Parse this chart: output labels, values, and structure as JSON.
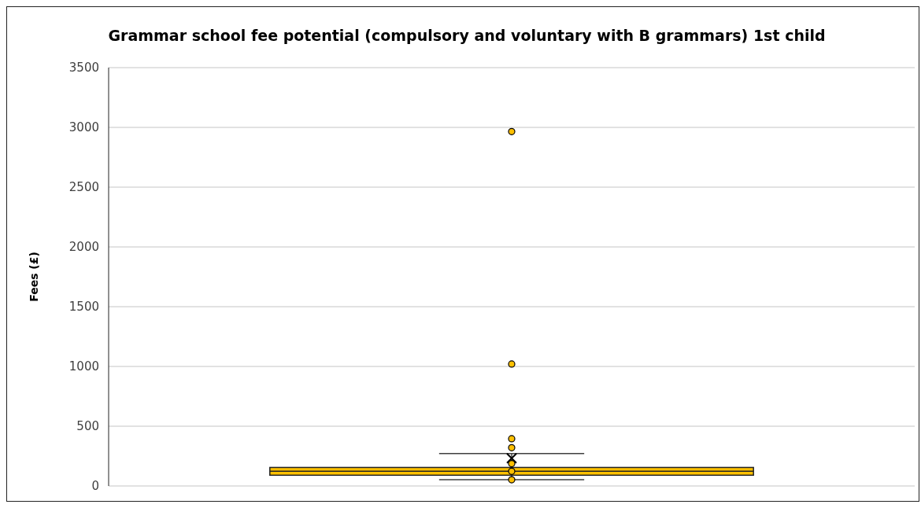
{
  "chart_data": {
    "type": "box",
    "title": "Grammar school fee potential (compulsory and voluntary with B grammars) 1st child",
    "ylabel": "Fees (£)",
    "categories": [
      null
    ],
    "series": [
      {
        "type": "box",
        "color": "#ffc000",
        "boxes": [
          {
            "low": 52,
            "q1": 90,
            "median": 123,
            "q3": 155,
            "high": 271,
            "mean": 232,
            "outliers": [
              2965,
              1020,
              395,
              320
            ]
          }
        ]
      },
      {
        "type": "scatter",
        "color": "#ffc000",
        "x": [
          null,
          null,
          null
        ],
        "values": [
          187,
          123,
          52
        ]
      }
    ],
    "ylim": [
      0,
      3500
    ],
    "yticks": [
      0,
      500,
      1000,
      1500,
      2000,
      2500,
      3000,
      3500
    ],
    "grid": "y",
    "marker": "circle"
  }
}
